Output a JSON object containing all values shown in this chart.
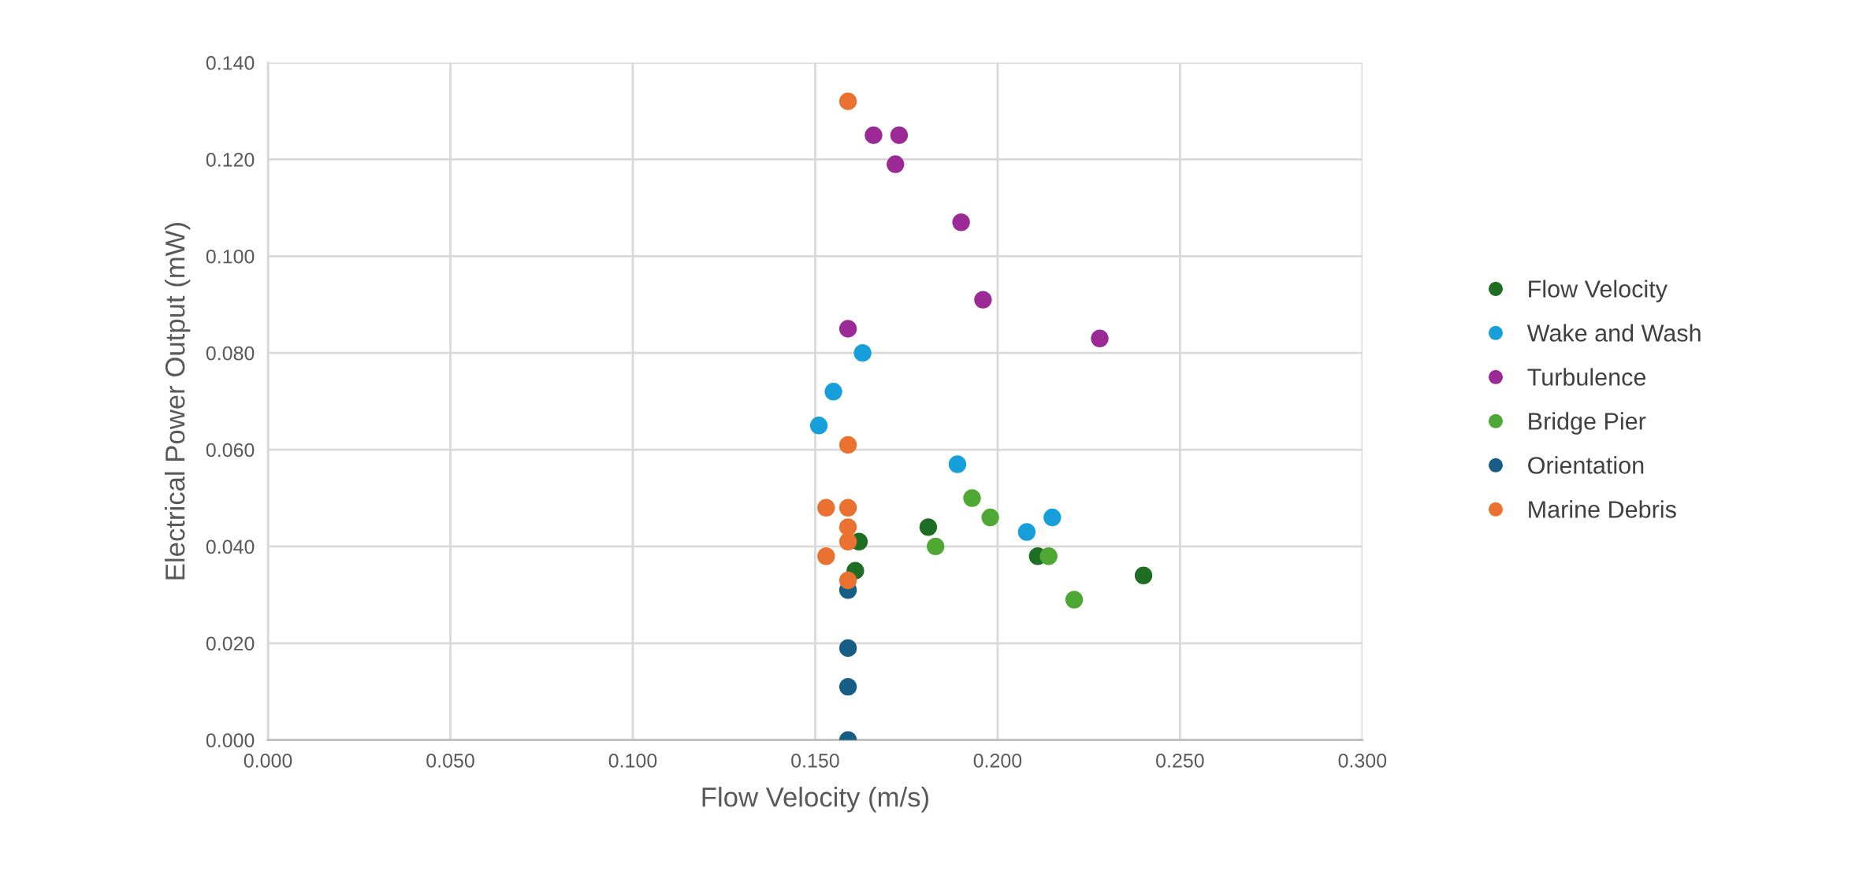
{
  "chart_data": {
    "type": "scatter",
    "xlabel": "Flow Velocity (m/s)",
    "ylabel": "Electrical Power Output (mW)",
    "xlim": [
      0,
      0.3
    ],
    "xticks": [
      {
        "value": 0,
        "label": "0.000"
      },
      {
        "value": 0.05,
        "label": "0.050"
      },
      {
        "value": 0.1,
        "label": "0.100"
      },
      {
        "value": 0.15,
        "label": "0.150"
      },
      {
        "value": 0.2,
        "label": "0.200"
      },
      {
        "value": 0.25,
        "label": "0.250"
      },
      {
        "value": 0.3,
        "label": "0.300"
      }
    ],
    "ylim": [
      0,
      0.14
    ],
    "yticks": [
      {
        "value": 0,
        "label": "0.000"
      },
      {
        "value": 0.02,
        "label": "0.020"
      },
      {
        "value": 0.04,
        "label": "0.040"
      },
      {
        "value": 0.06,
        "label": "0.060"
      },
      {
        "value": 0.08,
        "label": "0.080"
      },
      {
        "value": 0.1,
        "label": "0.100"
      },
      {
        "value": 0.12,
        "label": "0.120"
      },
      {
        "value": 0.14,
        "label": "0.140"
      }
    ],
    "grid": true,
    "legend": "right",
    "marker": "circle",
    "series": [
      {
        "name": "Flow Velocity",
        "color": "#1e6e23",
        "x": [
          0.162,
          0.161,
          0.181,
          0.211,
          0.24
        ],
        "values": [
          0.041,
          0.035,
          0.044,
          0.038,
          0.034
        ]
      },
      {
        "name": "Wake and Wash",
        "color": "#169fd9",
        "x": [
          0.163,
          0.155,
          0.151,
          0.189,
          0.208,
          0.215
        ],
        "values": [
          0.08,
          0.072,
          0.065,
          0.057,
          0.043,
          0.046
        ]
      },
      {
        "name": "Turbulence",
        "color": "#9c2a96",
        "x": [
          0.166,
          0.173,
          0.172,
          0.19,
          0.196,
          0.159,
          0.228
        ],
        "values": [
          0.125,
          0.125,
          0.119,
          0.107,
          0.091,
          0.085,
          0.083
        ]
      },
      {
        "name": "Bridge Pier",
        "color": "#4ea833",
        "x": [
          0.193,
          0.198,
          0.183,
          0.214,
          0.221
        ],
        "values": [
          0.05,
          0.046,
          0.04,
          0.038,
          0.029
        ]
      },
      {
        "name": "Orientation",
        "color": "#175e86",
        "x": [
          0.159,
          0.159,
          0.159,
          0.159
        ],
        "values": [
          0.031,
          0.019,
          0.011,
          0.0
        ]
      },
      {
        "name": "Marine Debris",
        "color": "#ea7130",
        "x": [
          0.159,
          0.159,
          0.153,
          0.159,
          0.159,
          0.159,
          0.153,
          0.159
        ],
        "values": [
          0.132,
          0.061,
          0.048,
          0.048,
          0.044,
          0.041,
          0.038,
          0.033
        ]
      }
    ]
  }
}
